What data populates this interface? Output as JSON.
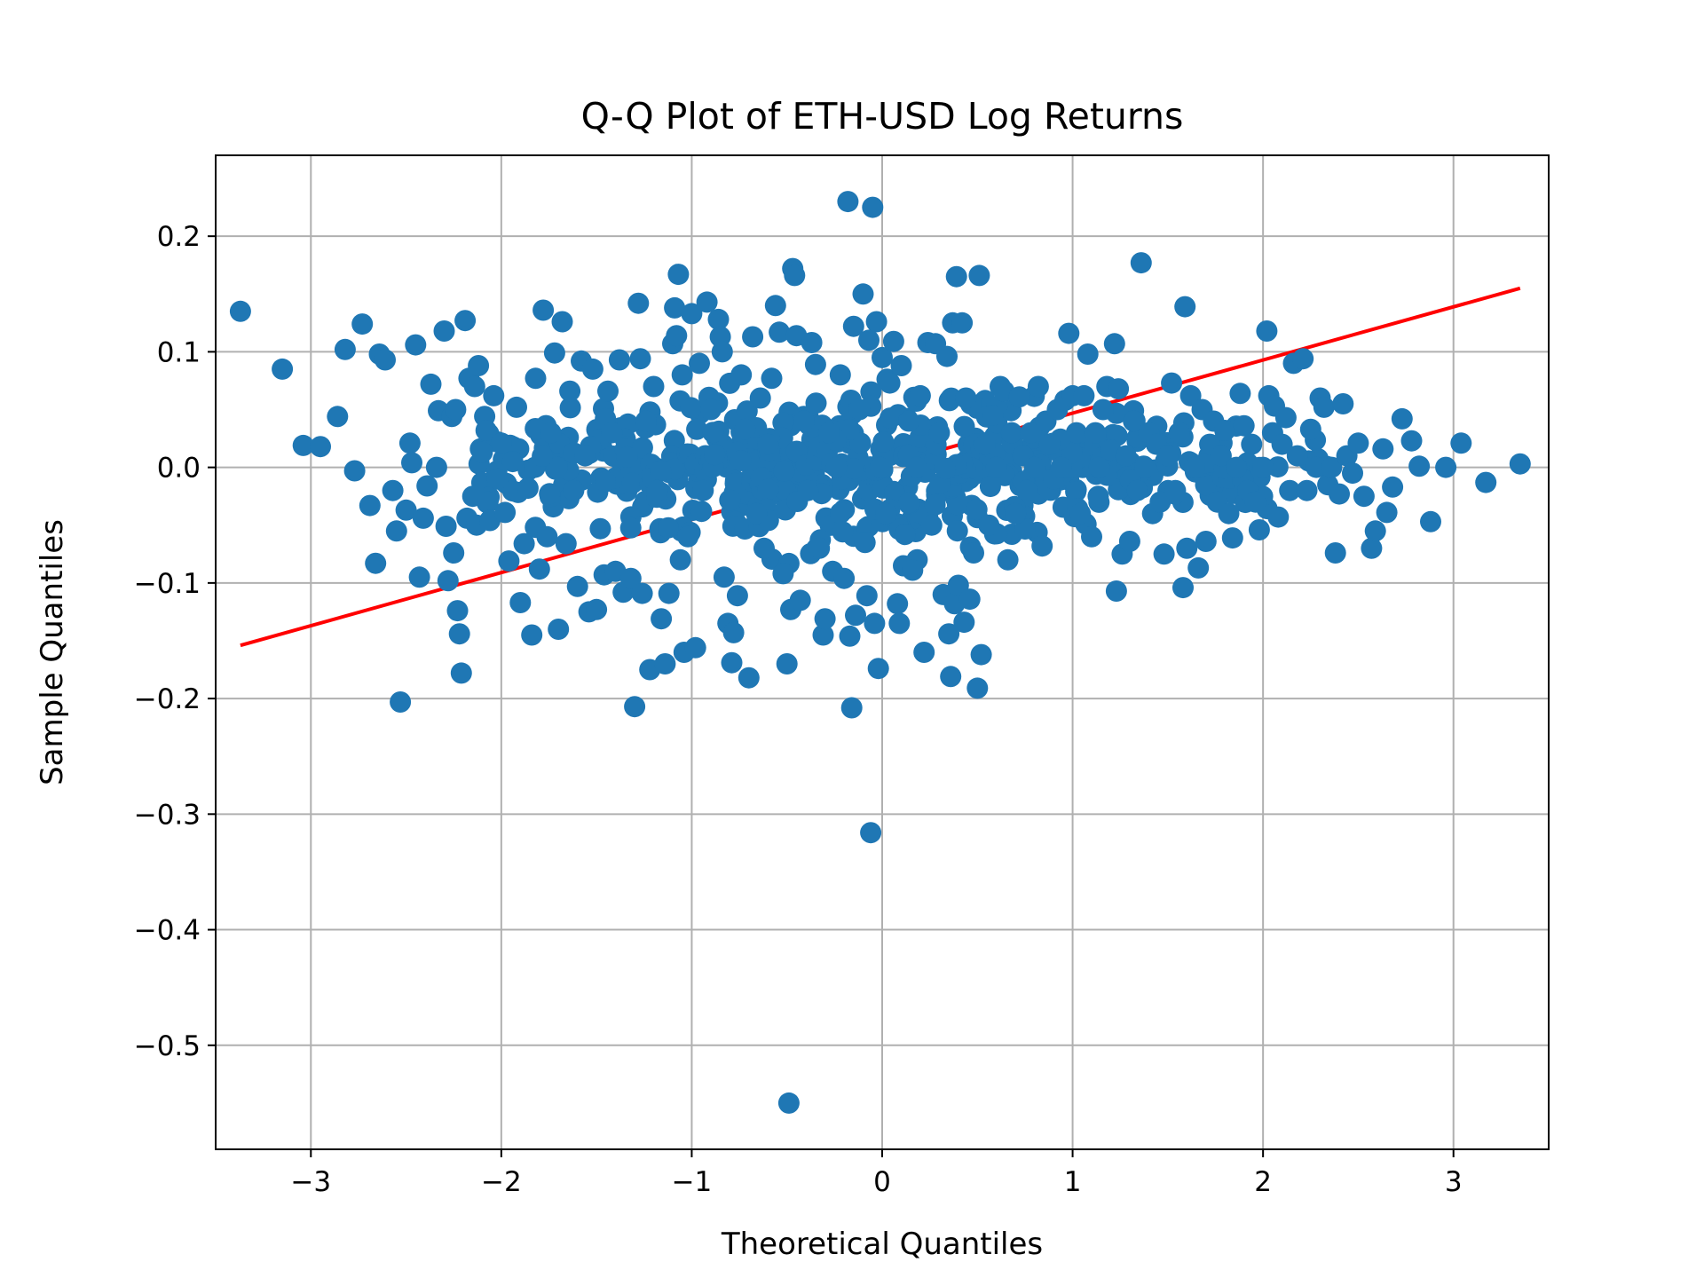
{
  "chart_data": {
    "type": "scatter",
    "title": "Q-Q Plot of ETH-USD Log Returns",
    "xlabel": "Theoretical Quantiles",
    "ylabel": "Sample Quantiles",
    "xlim": [
      -3.5,
      3.5
    ],
    "ylim": [
      -0.59,
      0.27
    ],
    "grid": true,
    "x_ticks": [
      -3,
      -2,
      -1,
      0,
      1,
      2,
      3
    ],
    "x_tick_labels": [
      "−3",
      "−2",
      "−1",
      "0",
      "1",
      "2",
      "3"
    ],
    "y_ticks": [
      0.2,
      0.1,
      0.0,
      -0.1,
      -0.2,
      -0.3,
      -0.4,
      -0.5
    ],
    "y_tick_labels": [
      "0.2",
      "0.1",
      "0.0",
      "−0.1",
      "−0.2",
      "−0.3",
      "−0.4",
      "−0.5"
    ],
    "point_color": "#1f77b4",
    "line_color": "#ff0000",
    "reference_line": {
      "x": [
        -3.37,
        3.35
      ],
      "y": [
        -0.154,
        0.155
      ]
    },
    "points": [
      [
        -3.37,
        0.135
      ],
      [
        -3.15,
        0.085
      ],
      [
        -3.04,
        0.019
      ],
      [
        -2.95,
        0.018
      ],
      [
        -2.86,
        0.044
      ],
      [
        -2.82,
        0.102
      ],
      [
        -2.77,
        -0.003
      ],
      [
        -2.73,
        0.124
      ],
      [
        -2.69,
        -0.033
      ],
      [
        -2.66,
        -0.083
      ],
      [
        -2.64,
        0.098
      ],
      [
        -2.61,
        0.093
      ],
      [
        -2.57,
        -0.02
      ],
      [
        -2.55,
        -0.055
      ],
      [
        -2.53,
        -0.203
      ],
      [
        -2.5,
        -0.037
      ],
      [
        -2.48,
        0.021
      ],
      [
        -2.47,
        0.004
      ],
      [
        -2.45,
        0.106
      ],
      [
        -2.43,
        -0.095
      ],
      [
        -2.41,
        -0.044
      ],
      [
        -2.39,
        -0.016
      ],
      [
        -2.37,
        0.072
      ],
      [
        -2.34,
        0.0
      ],
      [
        -2.33,
        0.049
      ],
      [
        -2.3,
        0.118
      ],
      [
        -2.29,
        -0.051
      ],
      [
        -2.28,
        -0.098
      ],
      [
        -2.26,
        0.044
      ],
      [
        -2.25,
        -0.074
      ],
      [
        -2.24,
        0.05
      ],
      [
        -2.23,
        -0.124
      ],
      [
        -2.22,
        -0.144
      ],
      [
        -2.21,
        -0.178
      ],
      [
        -2.19,
        0.127
      ],
      [
        -2.18,
        -0.044
      ],
      [
        -2.17,
        0.077
      ],
      [
        -2.15,
        -0.025
      ],
      [
        -2.14,
        0.07
      ],
      [
        -2.13,
        -0.05
      ],
      [
        -2.12,
        0.088
      ],
      [
        -2.11,
        0.016
      ],
      [
        -2.1,
        0.013
      ],
      [
        -2.08,
        0.032
      ],
      [
        -2.07,
        -0.03
      ],
      [
        -2.06,
        -0.046
      ],
      [
        -2.04,
        0.062
      ],
      [
        -2.02,
        -0.01
      ],
      [
        -2.0,
        0.021
      ],
      [
        -1.98,
        -0.039
      ],
      [
        -1.96,
        -0.081
      ],
      [
        -1.94,
        0.005
      ],
      [
        -1.92,
        0.052
      ],
      [
        -1.9,
        -0.117
      ],
      [
        -1.88,
        -0.066
      ],
      [
        -1.86,
        -0.018
      ],
      [
        -1.84,
        -0.145
      ],
      [
        -1.82,
        0.077
      ],
      [
        -1.8,
        -0.088
      ],
      [
        -1.78,
        0.136
      ],
      [
        -1.76,
        -0.06
      ],
      [
        -1.74,
        0.03
      ],
      [
        -1.72,
        0.099
      ],
      [
        -1.7,
        -0.14
      ],
      [
        -1.68,
        0.126
      ],
      [
        -1.66,
        -0.066
      ],
      [
        -1.64,
        0.066
      ],
      [
        -1.62,
        -0.02
      ],
      [
        -1.6,
        -0.103
      ],
      [
        -1.58,
        0.092
      ],
      [
        -1.56,
        0.01
      ],
      [
        -1.54,
        -0.125
      ],
      [
        -1.52,
        0.085
      ],
      [
        -1.5,
        -0.123
      ],
      [
        -1.48,
        -0.053
      ],
      [
        -1.46,
        -0.093
      ],
      [
        -1.44,
        0.066
      ],
      [
        -1.42,
        0.03
      ],
      [
        -1.4,
        -0.09
      ],
      [
        -1.38,
        0.093
      ],
      [
        -1.36,
        -0.108
      ],
      [
        -1.34,
        0.009
      ],
      [
        -1.32,
        -0.096
      ],
      [
        -1.3,
        -0.207
      ],
      [
        -1.28,
        0.142
      ],
      [
        -1.27,
        0.094
      ],
      [
        -1.26,
        -0.109
      ],
      [
        -1.24,
        0.04
      ],
      [
        -1.22,
        -0.175
      ],
      [
        -1.2,
        0.07
      ],
      [
        -1.18,
        -0.02
      ],
      [
        -1.16,
        -0.131
      ],
      [
        -1.14,
        -0.17
      ],
      [
        -1.12,
        -0.109
      ],
      [
        -1.1,
        0.107
      ],
      [
        -1.09,
        0.138
      ],
      [
        -1.08,
        0.114
      ],
      [
        -1.07,
        0.167
      ],
      [
        -1.06,
        -0.08
      ],
      [
        -1.05,
        0.08
      ],
      [
        -1.04,
        -0.16
      ],
      [
        -1.02,
        -0.06
      ],
      [
        -1.0,
        0.133
      ],
      [
        -0.98,
        -0.156
      ],
      [
        -0.96,
        0.09
      ],
      [
        -0.94,
        -0.02
      ],
      [
        -0.92,
        0.143
      ],
      [
        -0.9,
        0.05
      ],
      [
        -0.88,
        0.011
      ],
      [
        -0.86,
        0.128
      ],
      [
        -0.85,
        0.113
      ],
      [
        -0.84,
        0.1
      ],
      [
        -0.83,
        -0.095
      ],
      [
        -0.81,
        -0.135
      ],
      [
        -0.79,
        -0.169
      ],
      [
        -0.78,
        -0.143
      ],
      [
        -0.76,
        -0.111
      ],
      [
        -0.74,
        0.08
      ],
      [
        -0.72,
        0.033
      ],
      [
        -0.7,
        -0.182
      ],
      [
        -0.68,
        0.113
      ],
      [
        -0.66,
        -0.04
      ],
      [
        -0.64,
        0.06
      ],
      [
        -0.62,
        -0.07
      ],
      [
        -0.6,
        0.02
      ],
      [
        -0.58,
        0.077
      ],
      [
        -0.56,
        0.14
      ],
      [
        -0.54,
        0.117
      ],
      [
        -0.52,
        -0.092
      ],
      [
        -0.5,
        -0.17
      ],
      [
        -0.49,
        -0.55
      ],
      [
        -0.48,
        -0.123
      ],
      [
        -0.47,
        0.172
      ],
      [
        -0.46,
        0.166
      ],
      [
        -0.45,
        0.114
      ],
      [
        -0.43,
        -0.115
      ],
      [
        -0.41,
        0.04
      ],
      [
        -0.39,
        -0.02
      ],
      [
        -0.37,
        0.108
      ],
      [
        -0.35,
        0.089
      ],
      [
        -0.33,
        -0.07
      ],
      [
        -0.31,
        -0.145
      ],
      [
        -0.3,
        -0.131
      ],
      [
        -0.28,
        0.03
      ],
      [
        -0.26,
        -0.09
      ],
      [
        -0.24,
        0.0
      ],
      [
        -0.22,
        0.08
      ],
      [
        -0.2,
        -0.096
      ],
      [
        -0.18,
        0.23
      ],
      [
        -0.17,
        -0.146
      ],
      [
        -0.16,
        -0.208
      ],
      [
        -0.15,
        0.122
      ],
      [
        -0.14,
        -0.128
      ],
      [
        -0.12,
        0.05
      ],
      [
        -0.1,
        0.15
      ],
      [
        -0.09,
        -0.065
      ],
      [
        -0.08,
        -0.111
      ],
      [
        -0.07,
        0.11
      ],
      [
        -0.06,
        -0.316
      ],
      [
        -0.05,
        0.225
      ],
      [
        -0.04,
        -0.135
      ],
      [
        -0.03,
        0.126
      ],
      [
        -0.02,
        -0.174
      ],
      [
        -0.01,
        0.0
      ],
      [
        0.0,
        0.095
      ],
      [
        0.02,
        -0.04
      ],
      [
        0.04,
        0.073
      ],
      [
        0.06,
        0.109
      ],
      [
        0.08,
        -0.118
      ],
      [
        0.09,
        -0.135
      ],
      [
        0.1,
        0.088
      ],
      [
        0.12,
        -0.058
      ],
      [
        0.14,
        0.04
      ],
      [
        0.16,
        -0.089
      ],
      [
        0.18,
        0.0
      ],
      [
        0.2,
        0.062
      ],
      [
        0.22,
        -0.16
      ],
      [
        0.24,
        0.108
      ],
      [
        0.26,
        -0.05
      ],
      [
        0.28,
        0.107
      ],
      [
        0.3,
        0.03
      ],
      [
        0.32,
        -0.11
      ],
      [
        0.34,
        0.096
      ],
      [
        0.35,
        -0.144
      ],
      [
        0.36,
        -0.181
      ],
      [
        0.37,
        0.125
      ],
      [
        0.38,
        -0.118
      ],
      [
        0.39,
        0.165
      ],
      [
        0.4,
        -0.102
      ],
      [
        0.42,
        0.125
      ],
      [
        0.43,
        -0.134
      ],
      [
        0.44,
        0.06
      ],
      [
        0.46,
        -0.114
      ],
      [
        0.48,
        -0.074
      ],
      [
        0.5,
        -0.191
      ],
      [
        0.51,
        0.166
      ],
      [
        0.52,
        -0.162
      ],
      [
        0.54,
        0.02
      ],
      [
        0.56,
        -0.05
      ],
      [
        0.58,
        0.045
      ],
      [
        0.6,
        0.0
      ],
      [
        0.62,
        0.07
      ],
      [
        0.64,
        0.066
      ],
      [
        0.66,
        -0.08
      ],
      [
        0.68,
        0.03
      ],
      [
        0.7,
        -0.04
      ],
      [
        0.72,
        0.061
      ],
      [
        0.74,
        0.01
      ],
      [
        0.76,
        -0.02
      ],
      [
        0.78,
        0.03
      ],
      [
        0.8,
        0.0
      ],
      [
        0.82,
        0.07
      ],
      [
        0.84,
        -0.068
      ],
      [
        0.86,
        0.04
      ],
      [
        0.88,
        0.02
      ],
      [
        0.9,
        -0.01
      ],
      [
        0.92,
        0.05
      ],
      [
        0.94,
        0.0
      ],
      [
        0.96,
        0.058
      ],
      [
        0.98,
        0.116
      ],
      [
        1.0,
        0.062
      ],
      [
        1.02,
        0.03
      ],
      [
        1.04,
        -0.04
      ],
      [
        1.06,
        0.062
      ],
      [
        1.08,
        0.098
      ],
      [
        1.1,
        -0.06
      ],
      [
        1.12,
        0.03
      ],
      [
        1.14,
        0.0
      ],
      [
        1.16,
        0.05
      ],
      [
        1.18,
        0.07
      ],
      [
        1.2,
        0.015
      ],
      [
        1.22,
        0.107
      ],
      [
        1.23,
        -0.107
      ],
      [
        1.24,
        0.068
      ],
      [
        1.26,
        -0.075
      ],
      [
        1.28,
        0.01
      ],
      [
        1.3,
        -0.064
      ],
      [
        1.32,
        0.04
      ],
      [
        1.34,
        -0.02
      ],
      [
        1.36,
        0.177
      ],
      [
        1.38,
        0.0
      ],
      [
        1.4,
        0.03
      ],
      [
        1.42,
        -0.04
      ],
      [
        1.44,
        0.02
      ],
      [
        1.46,
        -0.03
      ],
      [
        1.48,
        -0.075
      ],
      [
        1.5,
        0.01
      ],
      [
        1.52,
        0.073
      ],
      [
        1.54,
        -0.02
      ],
      [
        1.56,
        0.03
      ],
      [
        1.58,
        -0.104
      ],
      [
        1.59,
        0.139
      ],
      [
        1.6,
        -0.07
      ],
      [
        1.62,
        0.062
      ],
      [
        1.64,
        0.0
      ],
      [
        1.66,
        -0.087
      ],
      [
        1.68,
        0.05
      ],
      [
        1.7,
        -0.064
      ],
      [
        1.72,
        0.02
      ],
      [
        1.74,
        0.04
      ],
      [
        1.76,
        -0.03
      ],
      [
        1.78,
        0.01
      ],
      [
        1.8,
        0.032
      ],
      [
        1.82,
        -0.04
      ],
      [
        1.84,
        -0.061
      ],
      [
        1.86,
        0.0
      ],
      [
        1.88,
        0.064
      ],
      [
        1.9,
        0.036
      ],
      [
        1.92,
        -0.02
      ],
      [
        1.94,
        0.02
      ],
      [
        1.96,
        -0.03
      ],
      [
        1.98,
        -0.054
      ],
      [
        2.0,
        0.0
      ],
      [
        2.02,
        0.118
      ],
      [
        2.03,
        0.062
      ],
      [
        2.05,
        0.03
      ],
      [
        2.06,
        0.053
      ],
      [
        2.08,
        -0.043
      ],
      [
        2.1,
        0.02
      ],
      [
        2.12,
        0.043
      ],
      [
        2.14,
        -0.02
      ],
      [
        2.16,
        0.09
      ],
      [
        2.18,
        0.01
      ],
      [
        2.21,
        0.094
      ],
      [
        2.23,
        -0.02
      ],
      [
        2.25,
        0.033
      ],
      [
        2.28,
        0.0
      ],
      [
        2.3,
        0.06
      ],
      [
        2.32,
        0.052
      ],
      [
        2.34,
        -0.015
      ],
      [
        2.36,
        0.0
      ],
      [
        2.38,
        -0.074
      ],
      [
        2.4,
        -0.023
      ],
      [
        2.42,
        0.055
      ],
      [
        2.44,
        0.01
      ],
      [
        2.47,
        -0.005
      ],
      [
        2.5,
        0.021
      ],
      [
        2.53,
        -0.025
      ],
      [
        2.57,
        -0.07
      ],
      [
        2.59,
        -0.055
      ],
      [
        2.63,
        0.016
      ],
      [
        2.65,
        -0.039
      ],
      [
        2.68,
        -0.017
      ],
      [
        2.73,
        0.042
      ],
      [
        2.78,
        0.023
      ],
      [
        2.82,
        0.001
      ],
      [
        2.88,
        -0.047
      ],
      [
        2.96,
        0.0
      ],
      [
        3.04,
        0.021
      ],
      [
        3.17,
        -0.013
      ],
      [
        3.35,
        0.003
      ]
    ],
    "dense_clusters": [
      [
        -2.0,
        0.0,
        0.04,
        18
      ],
      [
        -1.7,
        0.0,
        0.042,
        26
      ],
      [
        -1.4,
        0.0,
        0.046,
        32
      ],
      [
        -1.1,
        0.0,
        0.05,
        40
      ],
      [
        -0.8,
        0.0,
        0.055,
        46
      ],
      [
        -0.5,
        0.0,
        0.06,
        52
      ],
      [
        -0.2,
        0.0,
        0.062,
        56
      ],
      [
        0.1,
        0.0,
        0.06,
        54
      ],
      [
        0.4,
        0.0,
        0.055,
        48
      ],
      [
        0.7,
        0.0,
        0.048,
        40
      ],
      [
        1.0,
        0.0,
        0.042,
        34
      ],
      [
        1.3,
        0.0,
        0.038,
        28
      ],
      [
        1.6,
        0.0,
        0.034,
        22
      ],
      [
        1.9,
        0.0,
        0.03,
        14
      ],
      [
        2.2,
        0.0,
        0.024,
        6
      ]
    ]
  }
}
